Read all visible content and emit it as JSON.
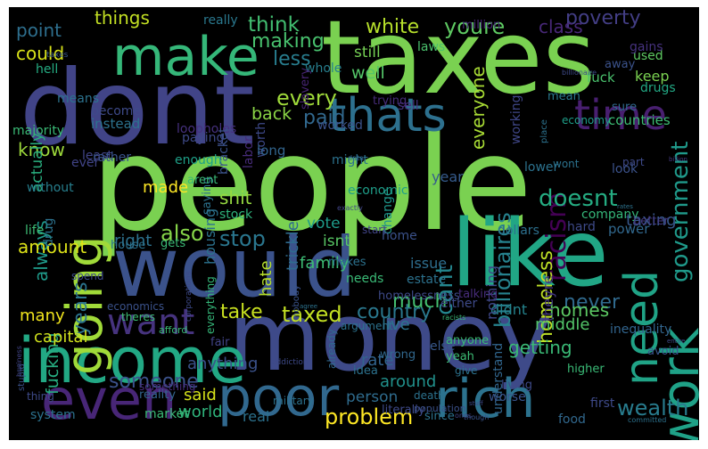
{
  "words": [
    {
      "text": "people",
      "color": "#7ad151"
    },
    {
      "text": "taxes",
      "color": "#7ad151"
    },
    {
      "text": "dont",
      "color": "#414487"
    },
    {
      "text": "money",
      "color": "#3e4a89"
    },
    {
      "text": "would",
      "color": "#3b528b"
    },
    {
      "text": "like",
      "color": "#21a685"
    },
    {
      "text": "income",
      "color": "#22a884"
    },
    {
      "text": "make",
      "color": "#35b779"
    },
    {
      "text": "even",
      "color": "#482677"
    },
    {
      "text": "poor",
      "color": "#31688e"
    },
    {
      "text": "rich",
      "color": "#2c728e"
    },
    {
      "text": "thats",
      "color": "#2d708e"
    },
    {
      "text": "time",
      "color": "#481f70"
    },
    {
      "text": "going",
      "color": "#a0da39"
    },
    {
      "text": "want",
      "color": "#46337e"
    },
    {
      "text": "need",
      "color": "#20a386"
    },
    {
      "text": "work",
      "color": "#1fa187"
    },
    {
      "text": "taxed",
      "color": "#c2df23"
    },
    {
      "text": "problem",
      "color": "#fde725"
    },
    {
      "text": "country",
      "color": "#2a788e"
    },
    {
      "text": "wealth",
      "color": "#287c8e"
    },
    {
      "text": "someone",
      "color": "#3b528b"
    },
    {
      "text": "every",
      "color": "#9fda3a"
    },
    {
      "text": "paid",
      "color": "#31688e"
    },
    {
      "text": "billionaires",
      "color": "#26828e"
    },
    {
      "text": "racism",
      "color": "#440154"
    },
    {
      "text": "homeless",
      "color": "#bddf26"
    },
    {
      "text": "doesnt",
      "color": "#25ac82"
    },
    {
      "text": "government",
      "color": "#1f998a"
    },
    {
      "text": "poverty",
      "color": "#433e85"
    },
    {
      "text": "youre",
      "color": "#5ec962"
    },
    {
      "text": "white",
      "color": "#b5de2b"
    },
    {
      "text": "class",
      "color": "#482878"
    },
    {
      "text": "things",
      "color": "#c2df23"
    },
    {
      "text": "think",
      "color": "#42be71"
    },
    {
      "text": "point",
      "color": "#2e6f8e"
    },
    {
      "text": "could",
      "color": "#d8e219"
    },
    {
      "text": "making",
      "color": "#48c16e"
    },
    {
      "text": "less",
      "color": "#287d8e"
    },
    {
      "text": "still",
      "color": "#75d054"
    },
    {
      "text": "well",
      "color": "#54c568"
    },
    {
      "text": "know",
      "color": "#9dd93b"
    },
    {
      "text": "always",
      "color": "#1f9a8a"
    },
    {
      "text": "actually",
      "color": "#29af7f"
    },
    {
      "text": "back",
      "color": "#8bd646"
    },
    {
      "text": "also",
      "color": "#86d549"
    },
    {
      "text": "stop",
      "color": "#2a768e"
    },
    {
      "text": "shit",
      "color": "#95d840"
    },
    {
      "text": "right",
      "color": "#2d718e"
    },
    {
      "text": "made",
      "color": "#fde725"
    },
    {
      "text": "years",
      "color": "#2b748e"
    },
    {
      "text": "amount",
      "color": "#dde318"
    },
    {
      "text": "fucking",
      "color": "#27ad81"
    },
    {
      "text": "many",
      "color": "#f1e51d"
    },
    {
      "text": "capital",
      "color": "#d0e11c"
    },
    {
      "text": "take",
      "color": "#c8e020"
    },
    {
      "text": "much",
      "color": "#44bf70"
    },
    {
      "text": "cant",
      "color": "#24868e"
    },
    {
      "text": "never",
      "color": "#306a8e"
    },
    {
      "text": "family",
      "color": "#3dbc74"
    },
    {
      "text": "live",
      "color": "#2c738e"
    },
    {
      "text": "middle",
      "color": "#52c569"
    },
    {
      "text": "getting",
      "color": "#3aba76"
    },
    {
      "text": "around",
      "color": "#21918c"
    },
    {
      "text": "person",
      "color": "#2f6c8e"
    },
    {
      "text": "rate",
      "color": "#32648e"
    },
    {
      "text": "anything",
      "color": "#3b528b"
    },
    {
      "text": "said",
      "color": "#d5e21a"
    },
    {
      "text": "world",
      "color": "#2fb47c"
    },
    {
      "text": "real",
      "color": "#2c728e"
    },
    {
      "text": "housing",
      "color": "#2c728e"
    },
    {
      "text": "vote",
      "color": "#1e9b8a"
    },
    {
      "text": "isnt",
      "color": "#58c765"
    },
    {
      "text": "hate",
      "color": "#b5de2b"
    },
    {
      "text": "trickle",
      "color": "#2f6b8e"
    },
    {
      "text": "homes",
      "color": "#5cc863"
    },
    {
      "text": "change",
      "color": "#1f968b"
    },
    {
      "text": "year",
      "color": "#365c8d"
    },
    {
      "text": "taxing",
      "color": "#38588c"
    },
    {
      "text": "everyone",
      "color": "#a8db34"
    },
    {
      "text": "keep",
      "color": "#7ad151"
    },
    {
      "text": "used",
      "color": "#5ec962"
    },
    {
      "text": "fuck",
      "color": "#4ac16d"
    },
    {
      "text": "didnt",
      "color": "#25848e"
    },
    {
      "text": "issue",
      "color": "#2e6e8e"
    },
    {
      "text": "nothing",
      "color": "#3f4889"
    },
    {
      "text": "theyre",
      "color": "#453781"
    },
    {
      "text": "understand",
      "color": "#31668e"
    },
    {
      "text": "laws",
      "color": "#4ac16d"
    },
    {
      "text": "million",
      "color": "#482878"
    },
    {
      "text": "gains",
      "color": "#46327e"
    },
    {
      "text": "drugs",
      "color": "#22a884"
    },
    {
      "text": "sure",
      "color": "#306a8e"
    },
    {
      "text": "countries",
      "color": "#3dbc74"
    },
    {
      "text": "really",
      "color": "#2a788e"
    },
    {
      "text": "whole",
      "color": "#277f8e"
    },
    {
      "text": "slavery",
      "color": "#482475"
    },
    {
      "text": "working",
      "color": "#3f4788"
    },
    {
      "text": "mean",
      "color": "#2a788e"
    },
    {
      "text": "away",
      "color": "#3b528b"
    },
    {
      "text": "economy",
      "color": "#1f9e89"
    },
    {
      "text": "sell",
      "color": "#46337e"
    },
    {
      "text": "trying",
      "color": "#472d7b"
    },
    {
      "text": "worked",
      "color": "#3b528b"
    },
    {
      "text": "loopholes",
      "color": "#46307e"
    },
    {
      "text": "instead",
      "color": "#2c728e"
    },
    {
      "text": "worth",
      "color": "#3e4989"
    },
    {
      "text": "bracket",
      "color": "#3b528b"
    },
    {
      "text": "labor",
      "color": "#472c7a"
    },
    {
      "text": "long",
      "color": "#32658e"
    },
    {
      "text": "become",
      "color": "#3e4a89"
    },
    {
      "text": "means",
      "color": "#2c728e"
    },
    {
      "text": "hell",
      "color": "#25ac82"
    },
    {
      "text": "majority",
      "color": "#3aba76"
    },
    {
      "text": "least",
      "color": "#414487"
    },
    {
      "text": "ever",
      "color": "#414487"
    },
    {
      "text": "without",
      "color": "#277f8e"
    },
    {
      "text": "paying",
      "color": "#3e4a89"
    },
    {
      "text": "enough",
      "color": "#1fa088"
    },
    {
      "text": "saying",
      "color": "#2c728e"
    },
    {
      "text": "rather",
      "color": "#3a548c"
    },
    {
      "text": "arent",
      "color": "#3aba76"
    },
    {
      "text": "drug",
      "color": "#2c728e"
    },
    {
      "text": "life",
      "color": "#3dbc74"
    },
    {
      "text": "stock",
      "color": "#2fb47c"
    },
    {
      "text": "might",
      "color": "#2c728e"
    },
    {
      "text": "economic",
      "color": "#1f9e89"
    },
    {
      "text": "home",
      "color": "#3b528b"
    },
    {
      "text": "wont",
      "color": "#2c728e"
    },
    {
      "text": "lower",
      "color": "#2c728e"
    },
    {
      "text": "part",
      "color": "#3e4a89"
    },
    {
      "text": "look",
      "color": "#3b528b"
    },
    {
      "text": "company",
      "color": "#35b779"
    },
    {
      "text": "better",
      "color": "#443a83"
    },
    {
      "text": "hard",
      "color": "#3e4a89"
    },
    {
      "text": "power",
      "color": "#31688e"
    },
    {
      "text": "dollars",
      "color": "#2d708e"
    },
    {
      "text": "start",
      "color": "#414487"
    },
    {
      "text": "house",
      "color": "#2c728e"
    },
    {
      "text": "gets",
      "color": "#3aba76"
    },
    {
      "text": "makes",
      "color": "#2c728e"
    },
    {
      "text": "needs",
      "color": "#3aba76"
    },
    {
      "text": "estate",
      "color": "#2c728e"
    },
    {
      "text": "either",
      "color": "#3e4a89"
    },
    {
      "text": "homelessness",
      "color": "#3e4a89"
    },
    {
      "text": "talking",
      "color": "#472c7a"
    },
    {
      "text": "nobody",
      "color": "#3a548c"
    },
    {
      "text": "everything",
      "color": "#35b779"
    },
    {
      "text": "spend",
      "color": "#3e4a89"
    },
    {
      "text": "economics",
      "color": "#3b528b"
    },
    {
      "text": "afford",
      "color": "#3aba76"
    },
    {
      "text": "theres",
      "color": "#3dbc74"
    },
    {
      "text": "fair",
      "color": "#414487"
    },
    {
      "text": "inequality",
      "color": "#32658e"
    },
    {
      "text": "avoid",
      "color": "#3a548c"
    },
    {
      "text": "idea",
      "color": "#2c728e"
    },
    {
      "text": "argument",
      "color": "#2c728e"
    },
    {
      "text": "wrong",
      "color": "#31688e"
    },
    {
      "text": "else",
      "color": "#38588c"
    },
    {
      "text": "yeah",
      "color": "#3dbc74"
    },
    {
      "text": "anyone",
      "color": "#3aba76"
    },
    {
      "text": "give",
      "color": "#2c728e"
    },
    {
      "text": "living",
      "color": "#3e4a89"
    },
    {
      "text": "worse",
      "color": "#3a548c"
    },
    {
      "text": "higher",
      "color": "#3aba76"
    },
    {
      "text": "first",
      "color": "#3e4a89"
    },
    {
      "text": "food",
      "color": "#31688e"
    },
    {
      "text": "since",
      "color": "#2c728e"
    },
    {
      "text": "population",
      "color": "#3b528b"
    },
    {
      "text": "literally",
      "color": "#3e4a89"
    },
    {
      "text": "market",
      "color": "#3aba76"
    },
    {
      "text": "system",
      "color": "#2c728e"
    },
    {
      "text": "thing",
      "color": "#3e4a89"
    },
    {
      "text": "reality",
      "color": "#32658e"
    },
    {
      "text": "something",
      "color": "#472c7a"
    },
    {
      "text": "military",
      "color": "#2c728e"
    },
    {
      "text": "already",
      "color": "#31688e"
    },
    {
      "text": "death",
      "color": "#2c728e"
    },
    {
      "text": "stupid",
      "color": "#3b528b"
    },
    {
      "text": "addiction",
      "color": "#3e4a89"
    },
    {
      "text": "business",
      "color": "#414487"
    },
    {
      "text": "taxes",
      "color": "#38588c"
    },
    {
      "text": "place",
      "color": "#2c728e"
    },
    {
      "text": "billionaire",
      "color": "#3e4a89"
    },
    {
      "text": "data",
      "color": "#31688e"
    },
    {
      "text": "exactly",
      "color": "#414487"
    },
    {
      "text": "rates",
      "color": "#2c728e"
    },
    {
      "text": "billion",
      "color": "#443a83"
    },
    {
      "text": "corporations",
      "color": "#3e4a89"
    },
    {
      "text": "agree",
      "color": "#2c728e"
    },
    {
      "text": "racists",
      "color": "#3aba76"
    },
    {
      "text": "entire",
      "color": "#3e4a89"
    },
    {
      "text": "committed",
      "color": "#2c728e"
    },
    {
      "text": "ones",
      "color": "#414487"
    },
    {
      "text": "stuff",
      "color": "#3e4a89"
    },
    {
      "text": "though",
      "color": "#3a548c"
    }
  ]
}
